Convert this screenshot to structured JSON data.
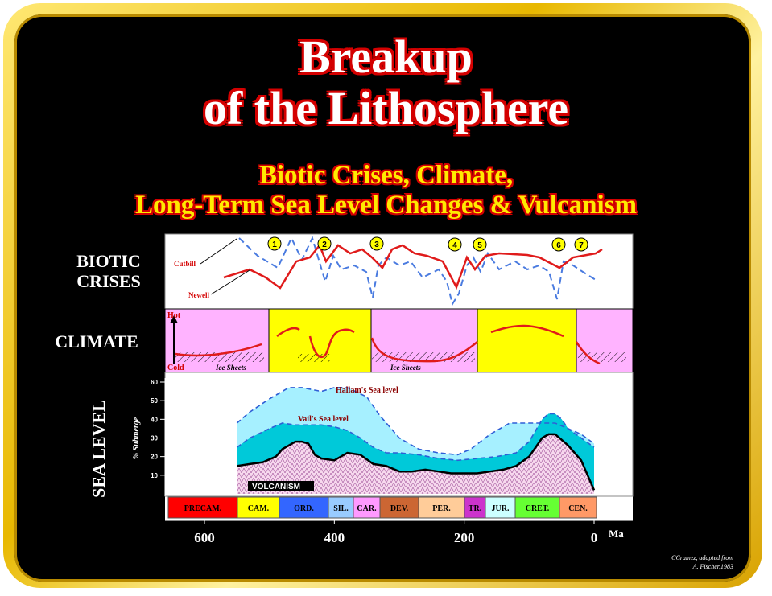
{
  "title": {
    "line1": "Breakup",
    "line2": "of the Lithosphere"
  },
  "subtitle": {
    "line1": "Biotic Crises, Climate,",
    "line2": "Long-Term Sea Level Changes & Vulcanism"
  },
  "panels": {
    "biotic": {
      "label_line1": "BIOTIC",
      "label_line2": "CRISES",
      "legend_cutbill": "Cutbill",
      "legend_newell": "Newell",
      "crisis_numbers": [
        "1",
        "2",
        "3",
        "4",
        "5",
        "6",
        "7"
      ]
    },
    "climate": {
      "label": "CLIMATE",
      "hot": "Hot",
      "cold": "Cold",
      "ice_sheets": "Ice Sheets"
    },
    "sea_level": {
      "label": "SEA LEVEL",
      "ylabel": "% Submerge",
      "hallam_label": "Hallam's Sea level",
      "vail_label": "Vail's Sea level",
      "volcanism_label": "VOLCANISM"
    }
  },
  "periods": [
    {
      "abbr": "PRECAM.",
      "color": "#ff0000"
    },
    {
      "abbr": "CAM.",
      "color": "#ffff00"
    },
    {
      "abbr": "ORD.",
      "color": "#3366ff"
    },
    {
      "abbr": "SIL.",
      "color": "#99ccff"
    },
    {
      "abbr": "CAR.",
      "color": "#ff99ff"
    },
    {
      "abbr": "DEV.",
      "color": "#cc6633"
    },
    {
      "abbr": "PER.",
      "color": "#ffcc99"
    },
    {
      "abbr": "TR.",
      "color": "#cc33cc"
    },
    {
      "abbr": "JUR.",
      "color": "#ccffff"
    },
    {
      "abbr": "CRET.",
      "color": "#66ff33"
    },
    {
      "abbr": "CEN.",
      "color": "#ff9966"
    }
  ],
  "credit": {
    "line1": "CCramez, adapted from",
    "line2": "A. Fischer,1983"
  },
  "chart_data": {
    "type": "line",
    "xlabel": "Ma",
    "x_ticks": [
      "600",
      "400",
      "200",
      "0"
    ],
    "x_tick_values": [
      600,
      400,
      200,
      0
    ],
    "xlim": [
      650,
      -10
    ],
    "y_ticks": [
      "60",
      "50",
      "40",
      "30",
      "20",
      "10"
    ],
    "y_tick_values": [
      60,
      50,
      40,
      30,
      20,
      10
    ],
    "ylim": [
      -5,
      62
    ],
    "ylabel": "% Submerge",
    "series": [
      {
        "name": "Hallam's Sea level",
        "color": "#2e5fd6",
        "x": [
          550,
          530,
          500,
          470,
          450,
          420,
          400,
          380,
          350,
          330,
          300,
          270,
          240,
          210,
          190,
          160,
          130,
          100,
          80,
          60,
          40,
          20,
          0
        ],
        "y": [
          38,
          44,
          51,
          57,
          57,
          55,
          57,
          57,
          52,
          42,
          30,
          24,
          22,
          21,
          24,
          32,
          38,
          38,
          38,
          38,
          35,
          32,
          27
        ]
      },
      {
        "name": "Vail's Sea level",
        "color": "#2e5fd6",
        "x": [
          550,
          530,
          500,
          480,
          460,
          440,
          420,
          400,
          380,
          360,
          340,
          320,
          300,
          270,
          240,
          210,
          180,
          150,
          120,
          100,
          80,
          70,
          60,
          50,
          40,
          20,
          0
        ],
        "y": [
          25,
          30,
          35,
          38,
          37,
          37,
          37,
          36,
          34,
          30,
          25,
          22,
          22,
          21,
          19,
          18,
          19,
          20,
          22,
          28,
          40,
          43,
          43,
          40,
          35,
          30,
          25
        ]
      },
      {
        "name": "VOLCANISM",
        "color": "#000000",
        "x": [
          550,
          530,
          510,
          490,
          480,
          460,
          450,
          440,
          430,
          420,
          400,
          390,
          380,
          360,
          340,
          320,
          300,
          280,
          260,
          240,
          220,
          200,
          180,
          160,
          140,
          120,
          100,
          90,
          80,
          70,
          60,
          50,
          40,
          20,
          0
        ],
        "y": [
          15,
          16,
          17,
          20,
          24,
          28,
          28,
          27,
          21,
          19,
          18,
          20,
          22,
          21,
          16,
          15,
          12,
          12,
          13,
          12,
          11,
          11,
          11,
          12,
          13,
          15,
          20,
          25,
          30,
          32,
          32,
          29,
          26,
          18,
          2
        ]
      }
    ]
  }
}
